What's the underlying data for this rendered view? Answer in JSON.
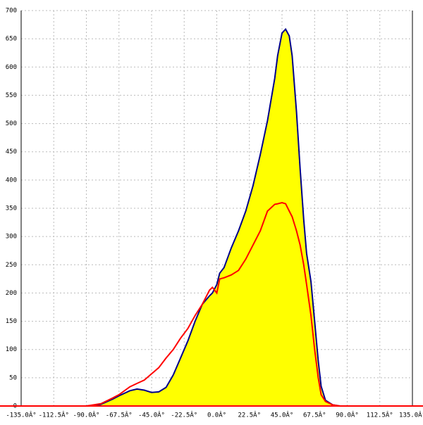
{
  "chart_data": {
    "type": "line",
    "x": [
      -90,
      -80,
      -72,
      -67.5,
      -60,
      -55,
      -50,
      -45,
      -40,
      -35,
      -30,
      -25,
      -20,
      -15,
      -10,
      -5,
      -3,
      0,
      2,
      5,
      10,
      15,
      20,
      25,
      30,
      35,
      40,
      42,
      45,
      47.5,
      50,
      52,
      55,
      57.5,
      60,
      62,
      65,
      67.5,
      70,
      72,
      75,
      80,
      85,
      90
    ],
    "series": [
      {
        "color": "#00008b",
        "fill": "#ffff00",
        "values": [
          0,
          3,
          12,
          18,
          27,
          30,
          28,
          24,
          25,
          33,
          55,
          85,
          115,
          150,
          180,
          195,
          200,
          215,
          235,
          245,
          280,
          310,
          345,
          390,
          445,
          505,
          580,
          620,
          660,
          667,
          655,
          620,
          520,
          420,
          330,
          270,
          220,
          150,
          80,
          35,
          10,
          2,
          0,
          0
        ]
      },
      {
        "color": "#ff0000",
        "values": [
          0,
          4,
          14,
          20,
          34,
          40,
          46,
          57,
          68,
          85,
          100,
          120,
          137,
          160,
          180,
          205,
          210,
          200,
          225,
          227,
          232,
          240,
          260,
          285,
          310,
          345,
          357,
          358,
          360,
          358,
          345,
          335,
          310,
          285,
          250,
          215,
          160,
          100,
          50,
          20,
          8,
          2,
          0,
          0
        ]
      }
    ],
    "xlim": [
      -135,
      135
    ],
    "xticks": [
      {
        "value": -135,
        "label": "-135.0Â°"
      },
      {
        "value": -112.5,
        "label": "-112.5Â°"
      },
      {
        "value": -90,
        "label": "-90.0Â°"
      },
      {
        "value": -67.5,
        "label": "-67.5Â°"
      },
      {
        "value": -45,
        "label": "-45.0Â°"
      },
      {
        "value": -22.5,
        "label": "-22.5Â°"
      },
      {
        "value": 0,
        "label": "0.0Â°"
      },
      {
        "value": 22.5,
        "label": "22.5Â°"
      },
      {
        "value": 45,
        "label": "45.0Â°"
      },
      {
        "value": 67.5,
        "label": "67.5Â°"
      },
      {
        "value": 90,
        "label": "90.0Â°"
      },
      {
        "value": 112.5,
        "label": "112.5Â°"
      },
      {
        "value": 135,
        "label": "135.0Â°"
      }
    ],
    "ylim": [
      0,
      700
    ],
    "yticks": [
      0,
      50,
      100,
      150,
      200,
      250,
      300,
      350,
      400,
      450,
      500,
      550,
      600,
      650,
      700
    ],
    "grid": true
  }
}
